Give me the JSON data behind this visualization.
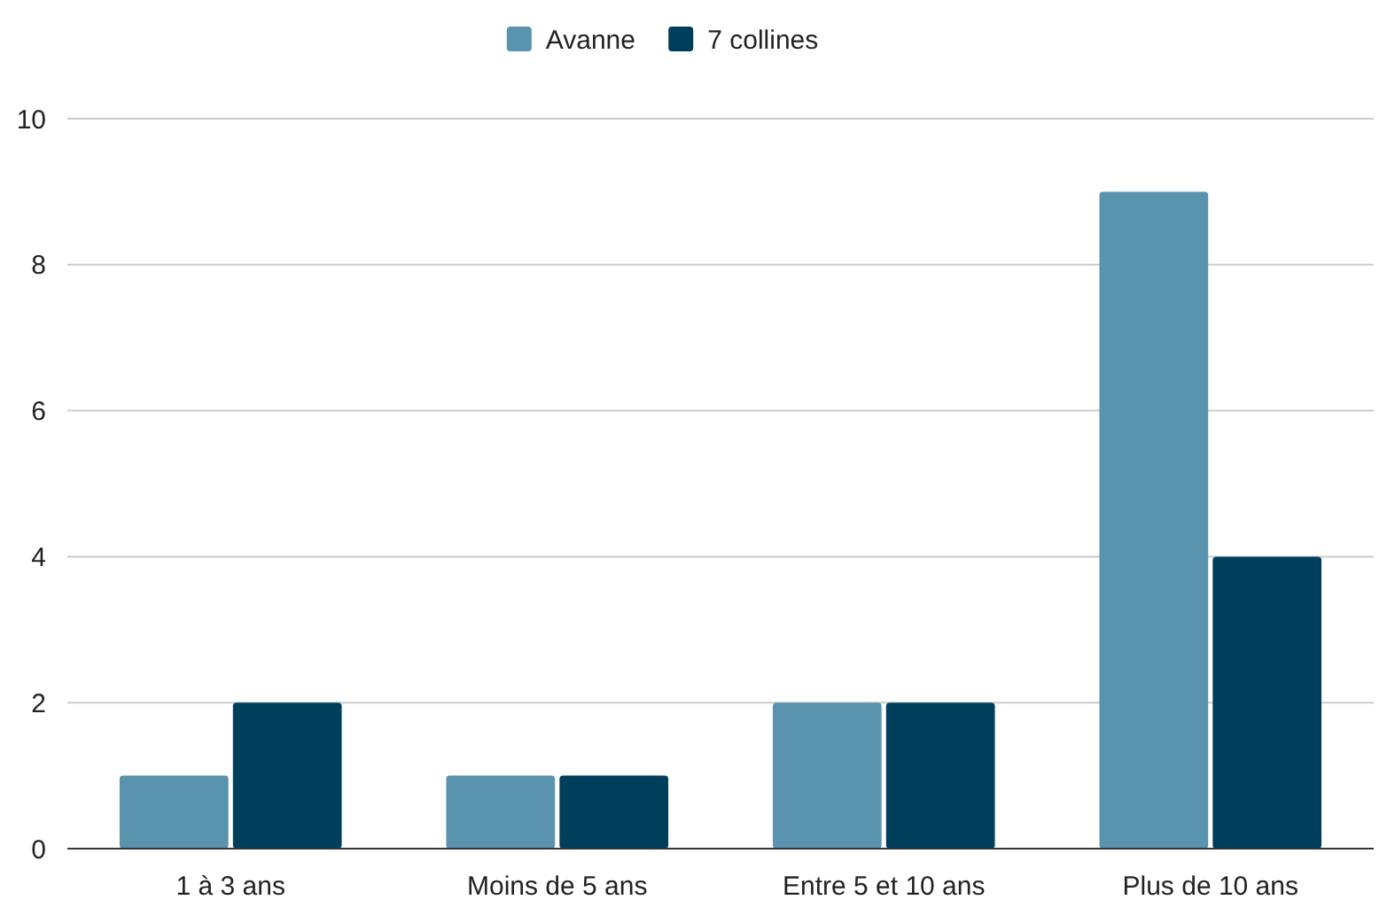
{
  "chart_data": {
    "type": "bar",
    "categories": [
      "1 à 3 ans",
      "Moins de 5 ans",
      "Entre 5 et 10 ans",
      "Plus de 10 ans"
    ],
    "series": [
      {
        "name": "Avanne",
        "color": "#5a93ad",
        "values": [
          1,
          1,
          2,
          9
        ]
      },
      {
        "name": "7 collines",
        "color": "#003f5c",
        "values": [
          2,
          1,
          2,
          4
        ]
      }
    ],
    "ylim": [
      0,
      10
    ],
    "yticks": [
      0,
      2,
      4,
      6,
      8,
      10
    ],
    "grid": "y",
    "legend": "top"
  }
}
